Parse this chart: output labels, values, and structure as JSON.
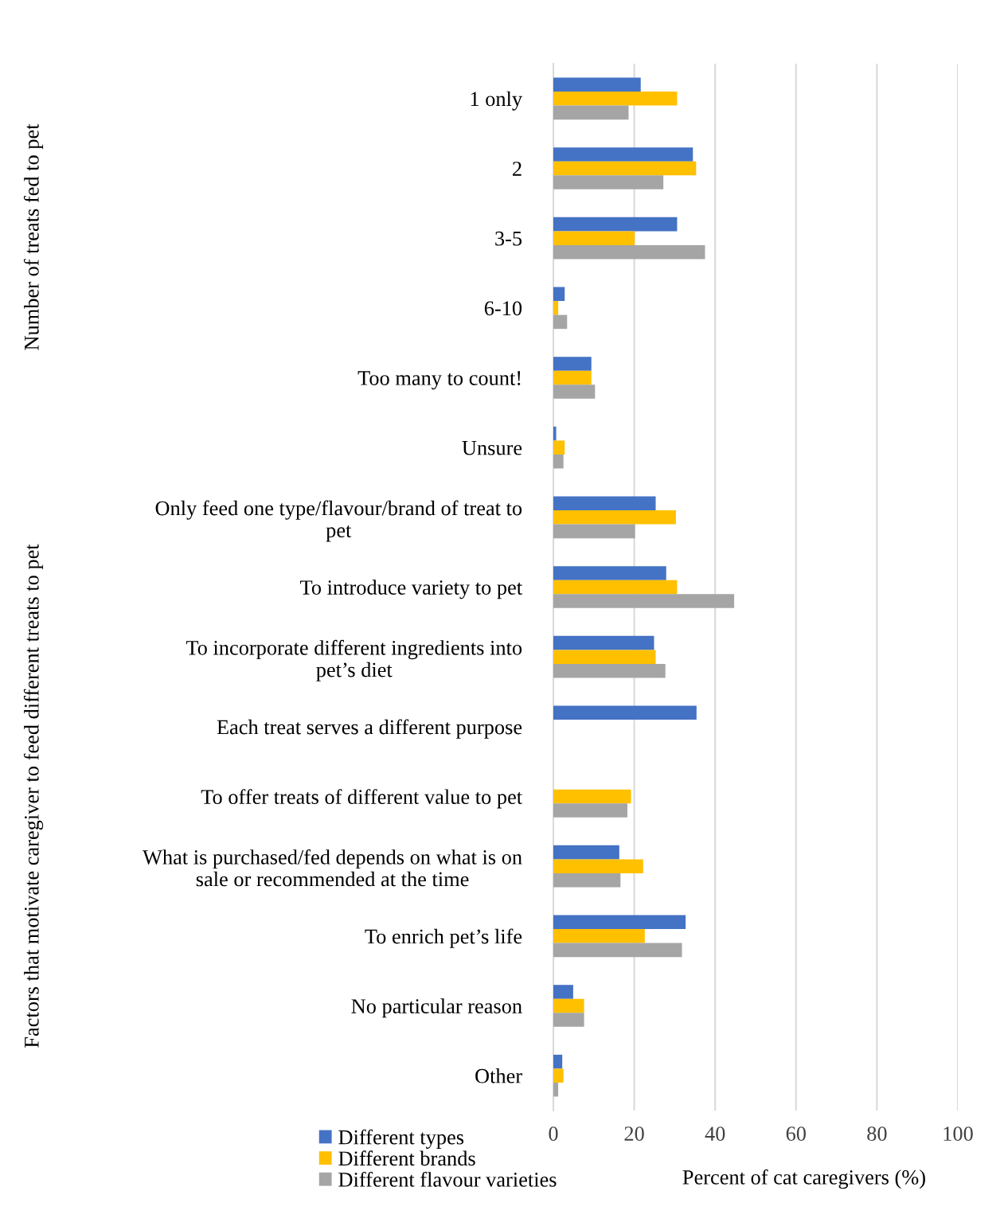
{
  "chart_data": {
    "type": "bar",
    "orientation": "horizontal",
    "categories": [
      "1 only",
      "2",
      "3-5",
      "6-10",
      "Too many to count!",
      "Unsure",
      "Only feed one type/flavour/brand of treat to\npet",
      "To introduce variety to pet",
      "To incorporate different ingredients into\npet’s diet",
      "Each treat serves a different purpose",
      "To offer treats of different value to pet",
      "What is purchased/fed depends on what is on\nsale or recommended at the time",
      "To enrich pet’s life",
      "No particular reason",
      "Other"
    ],
    "series": [
      {
        "name": "Different types",
        "color": "#4472c4",
        "values": [
          21.6,
          34.5,
          30.6,
          2.8,
          9.4,
          0.7,
          25.3,
          27.9,
          24.9,
          35.4,
          null,
          16.3,
          32.7,
          4.9,
          2.2
        ]
      },
      {
        "name": "Different brands",
        "color": "#ffc000",
        "values": [
          30.6,
          35.3,
          20.1,
          1.2,
          9.4,
          2.8,
          30.3,
          30.6,
          25.3,
          null,
          19.2,
          22.2,
          22.6,
          7.6,
          2.5
        ]
      },
      {
        "name": "Different flavour varieties",
        "color": "#a5a5a5",
        "values": [
          18.6,
          27.2,
          37.5,
          3.4,
          10.3,
          2.5,
          20.2,
          44.7,
          27.7,
          null,
          18.3,
          16.6,
          31.8,
          7.6,
          1.2
        ]
      }
    ],
    "xlabel": "Percent of cat caregivers (%)",
    "xlim": [
      0,
      100
    ],
    "xticks": [
      0,
      20,
      40,
      60,
      80,
      100
    ],
    "grid": "x",
    "legend": "bottom left",
    "annotations": [
      "Number of treats fed to pet",
      "Factors that motivate caregiver to feed different treats to pet"
    ]
  }
}
